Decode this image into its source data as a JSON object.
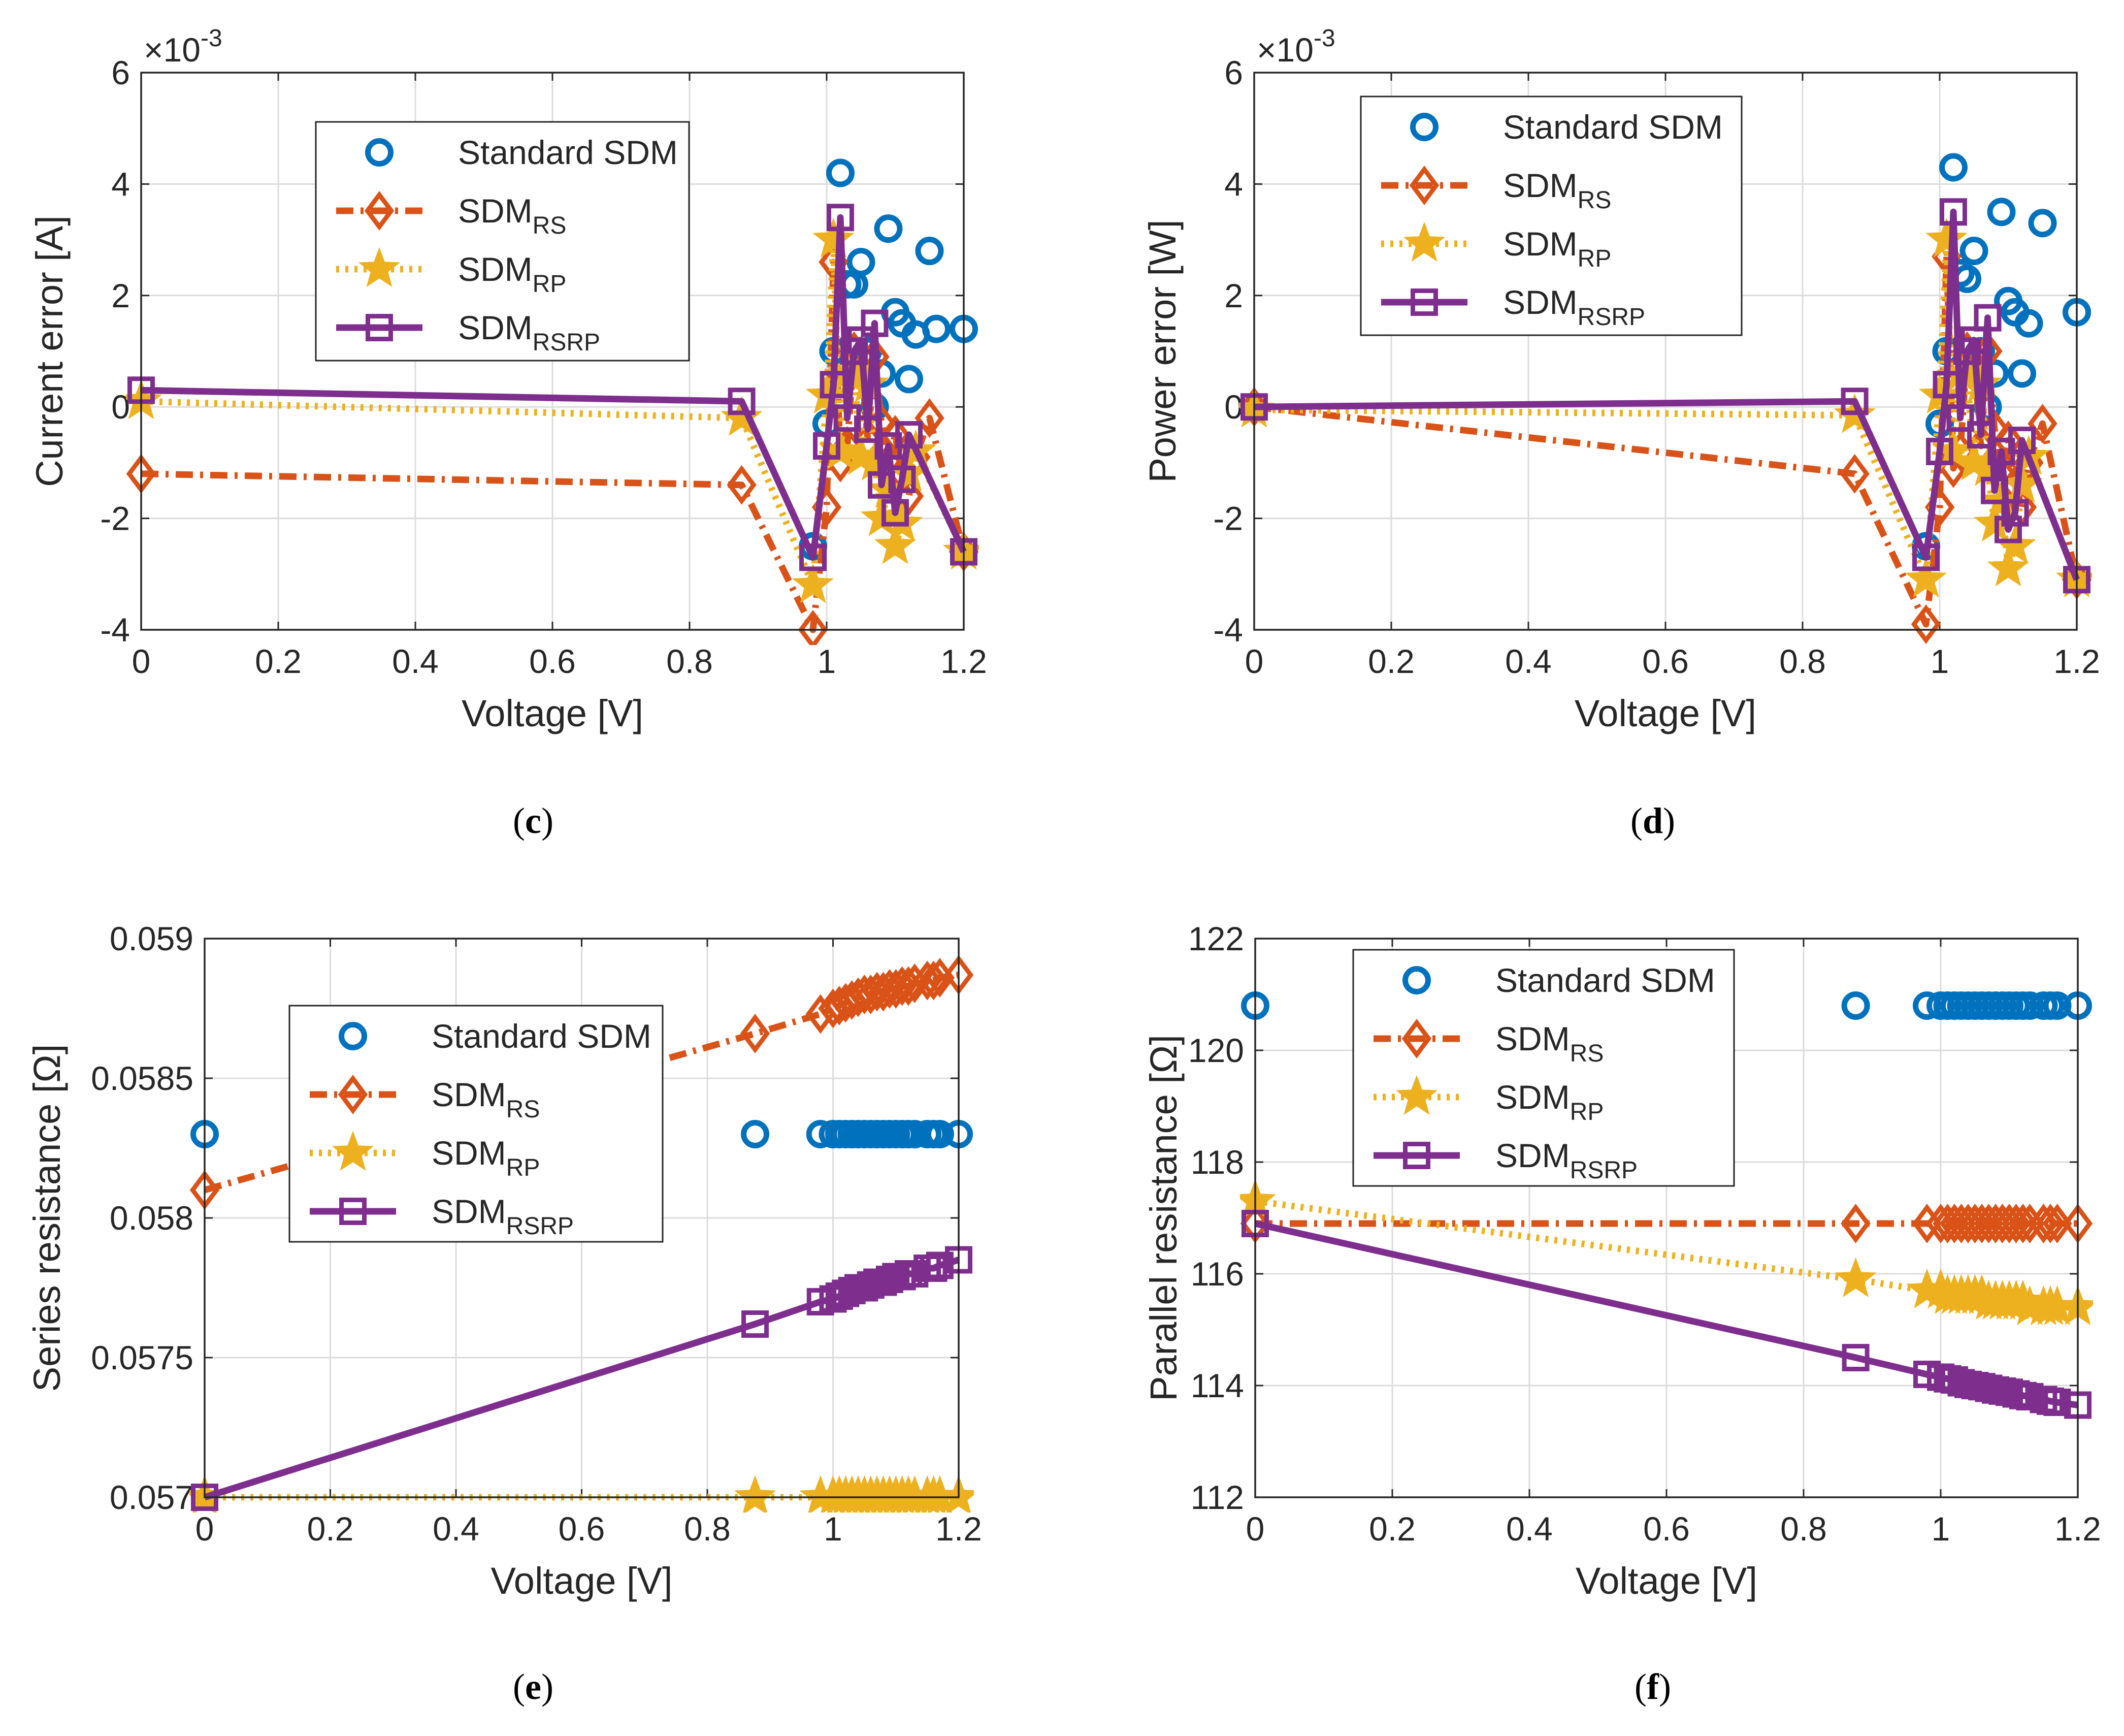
{
  "colors": {
    "standard": "#0072BD",
    "rs": "#D95319",
    "rp": "#EDB120",
    "rsrp": "#7E2F8E",
    "grid": "#dcdcdc",
    "axis": "#262626"
  },
  "legend_labels": {
    "standard": "Standard SDM",
    "sdm_base": "SDM",
    "rs_sub": "RS",
    "rp_sub": "RP",
    "rsrp_sub": "RSRP"
  },
  "chart_data": [
    {
      "id": "c",
      "type": "line",
      "panel_label": "c",
      "xlabel": "Voltage [V]",
      "ylabel": "Current error [A]",
      "exponent": {
        "base": "×10",
        "power": "-3"
      },
      "xlim": [
        0,
        1.2
      ],
      "ylim": [
        -4,
        6
      ],
      "xticks": [
        0,
        0.2,
        0.4,
        0.6,
        0.8,
        1,
        1.2
      ],
      "xtick_labels": [
        "0",
        "0.2",
        "0.4",
        "0.6",
        "0.8",
        "1",
        "1.2"
      ],
      "yticks": [
        -4,
        -2,
        0,
        2,
        4,
        6
      ],
      "ytick_labels": [
        "-4",
        "-2",
        "0",
        "2",
        "4",
        "6"
      ],
      "grid": true,
      "legend_position": "upper-middle",
      "x": [
        0,
        0.876,
        0.98,
        1.0,
        1.01,
        1.02,
        1.03,
        1.04,
        1.05,
        1.06,
        1.07,
        1.08,
        1.09,
        1.1,
        1.11,
        1.12,
        1.13,
        1.15,
        1.16,
        1.17,
        1.2
      ],
      "series": [
        {
          "name": "Standard SDM",
          "key": "standard",
          "style": "markers",
          "marker": "circle",
          "values": [
            null,
            null,
            -2.5,
            -0.3,
            1.0,
            4.2,
            2.2,
            2.2,
            2.6,
            1.0,
            0.0,
            0.6,
            3.2,
            1.7,
            1.5,
            0.5,
            1.3,
            2.8,
            1.4,
            null,
            1.4
          ]
        },
        {
          "name": "SDM_RS",
          "key": "rs",
          "style": "dashdot",
          "marker": "diamond",
          "values": [
            -1.2,
            -1.4,
            -4.0,
            -1.8,
            2.6,
            -1.0,
            -0.7,
            1.0,
            0.9,
            -0.6,
            0.9,
            -0.3,
            -1.0,
            -0.5,
            -1.2,
            -1.6,
            -0.9,
            -0.2,
            null,
            null,
            -2.6
          ]
        },
        {
          "name": "SDM_RP",
          "key": "rp",
          "style": "dotted",
          "marker": "star",
          "values": [
            0.1,
            -0.2,
            -3.2,
            0.2,
            3.0,
            -0.8,
            0.6,
            0.6,
            -0.9,
            0.4,
            -1.0,
            -2.0,
            -1.5,
            -2.5,
            -2.1,
            -1.2,
            -0.8,
            null,
            null,
            null,
            -2.6
          ]
        },
        {
          "name": "SDM_RSRP",
          "key": "rsrp",
          "style": "solid",
          "marker": "square",
          "values": [
            0.3,
            0.1,
            -2.7,
            -0.7,
            0.4,
            3.4,
            -0.2,
            1.0,
            1.2,
            -0.4,
            1.5,
            -1.4,
            -0.7,
            -1.9,
            -1.3,
            -0.5,
            null,
            null,
            null,
            null,
            -2.6
          ]
        }
      ]
    },
    {
      "id": "d",
      "type": "line",
      "panel_label": "d",
      "xlabel": "Voltage [V]",
      "ylabel": "Power error [W]",
      "exponent": {
        "base": "×10",
        "power": "-3"
      },
      "xlim": [
        0,
        1.2
      ],
      "ylim": [
        -4,
        6
      ],
      "xticks": [
        0,
        0.2,
        0.4,
        0.6,
        0.8,
        1,
        1.2
      ],
      "xtick_labels": [
        "0",
        "0.2",
        "0.4",
        "0.6",
        "0.8",
        "1",
        "1.2"
      ],
      "yticks": [
        -4,
        -2,
        0,
        2,
        4,
        6
      ],
      "ytick_labels": [
        "-4",
        "-2",
        "0",
        "2",
        "4",
        "6"
      ],
      "grid": true,
      "legend_position": "top-right",
      "x": [
        0,
        0.876,
        0.98,
        1.0,
        1.01,
        1.02,
        1.03,
        1.04,
        1.05,
        1.06,
        1.07,
        1.08,
        1.09,
        1.1,
        1.11,
        1.12,
        1.13,
        1.15,
        1.16,
        1.17,
        1.2
      ],
      "series": [
        {
          "name": "Standard SDM",
          "key": "standard",
          "style": "markers",
          "marker": "circle",
          "values": [
            null,
            null,
            -2.5,
            -0.3,
            1.0,
            4.3,
            2.4,
            2.3,
            2.8,
            1.0,
            0.0,
            0.6,
            3.5,
            1.9,
            1.7,
            0.6,
            1.5,
            3.3,
            null,
            null,
            1.7
          ]
        },
        {
          "name": "SDM_RS",
          "key": "rs",
          "style": "dashdot",
          "marker": "diamond",
          "values": [
            0,
            -1.2,
            -3.9,
            -1.8,
            2.7,
            -1.1,
            -0.8,
            1.0,
            0.9,
            -0.7,
            1.0,
            -0.4,
            -1.2,
            -0.6,
            -1.4,
            -1.8,
            -1.0,
            -0.3,
            null,
            null,
            -3.1
          ]
        },
        {
          "name": "SDM_RP",
          "key": "rp",
          "style": "dotted",
          "marker": "star",
          "values": [
            -0.05,
            -0.15,
            -3.1,
            0.2,
            3.0,
            -0.8,
            0.6,
            0.6,
            -1.0,
            0.4,
            -1.1,
            -2.1,
            -1.7,
            -2.9,
            -2.5,
            -1.4,
            -0.9,
            null,
            null,
            null,
            -3.1
          ]
        },
        {
          "name": "SDM_RSRP",
          "key": "rsrp",
          "style": "solid",
          "marker": "square",
          "values": [
            0,
            0.1,
            -2.7,
            -0.8,
            0.4,
            3.5,
            -0.2,
            1.0,
            1.2,
            -0.5,
            1.6,
            -1.5,
            -0.8,
            -2.2,
            -1.9,
            -0.6,
            null,
            null,
            null,
            null,
            -3.1
          ]
        }
      ]
    },
    {
      "id": "e",
      "type": "line",
      "panel_label": "e",
      "xlabel": "Voltage [V]",
      "ylabel": "Series resistance [Ω]",
      "xlim": [
        0,
        1.2
      ],
      "ylim": [
        0.057,
        0.059
      ],
      "xticks": [
        0,
        0.2,
        0.4,
        0.6,
        0.8,
        1,
        1.2
      ],
      "xtick_labels": [
        "0",
        "0.2",
        "0.4",
        "0.6",
        "0.8",
        "1",
        "1.2"
      ],
      "yticks": [
        0.057,
        0.0575,
        0.058,
        0.0585,
        0.059
      ],
      "ytick_labels": [
        "0.057",
        "0.0575",
        "0.058",
        "0.0585",
        "0.059"
      ],
      "grid": true,
      "legend_position": "center-left",
      "x": [
        0,
        0.876,
        0.98,
        1.0,
        1.01,
        1.02,
        1.03,
        1.04,
        1.05,
        1.06,
        1.07,
        1.08,
        1.09,
        1.1,
        1.11,
        1.12,
        1.13,
        1.15,
        1.16,
        1.17,
        1.2
      ],
      "series": [
        {
          "name": "Standard SDM",
          "key": "standard",
          "style": "markers",
          "marker": "circle",
          "values": [
            0.0583,
            0.0583,
            0.0583,
            0.0583,
            0.0583,
            0.0583,
            0.0583,
            0.0583,
            0.0583,
            0.0583,
            0.0583,
            0.0583,
            0.0583,
            0.0583,
            0.0583,
            0.0583,
            0.0583,
            0.0583,
            0.0583,
            0.0583,
            0.0583
          ]
        },
        {
          "name": "SDM_RS",
          "key": "rs",
          "style": "dashdot",
          "marker": "diamond",
          "values": [
            0.0581,
            0.05866,
            0.05873,
            0.05875,
            0.05876,
            0.05877,
            0.05878,
            0.05879,
            0.0588,
            0.0588,
            0.05881,
            0.05881,
            0.05882,
            0.05882,
            0.05883,
            0.05883,
            0.05884,
            0.05885,
            0.05885,
            0.05886,
            0.05887
          ]
        },
        {
          "name": "SDM_RP",
          "key": "rp",
          "style": "dotted",
          "marker": "star",
          "values": [
            0.057,
            0.057,
            0.057,
            0.057,
            0.057,
            0.057,
            0.057,
            0.057,
            0.057,
            0.057,
            0.057,
            0.057,
            0.057,
            0.057,
            0.057,
            0.057,
            0.057,
            0.057,
            0.057,
            0.057,
            0.057
          ]
        },
        {
          "name": "SDM_RSRP",
          "key": "rsrp",
          "style": "solid",
          "marker": "square",
          "values": [
            0.057,
            0.05762,
            0.0577,
            0.05771,
            0.05772,
            0.05773,
            0.05774,
            0.05775,
            0.05775,
            0.05776,
            0.05777,
            0.05777,
            0.05778,
            0.05779,
            0.05779,
            0.0578,
            0.0578,
            0.05782,
            0.05782,
            0.05783,
            0.05785
          ]
        }
      ]
    },
    {
      "id": "f",
      "type": "line",
      "panel_label": "f",
      "xlabel": "Voltage [V]",
      "ylabel": "Parallel resistance [Ω]",
      "xlim": [
        0,
        1.2
      ],
      "ylim": [
        112,
        122
      ],
      "xticks": [
        0,
        0.2,
        0.4,
        0.6,
        0.8,
        1,
        1.2
      ],
      "xtick_labels": [
        "0",
        "0.2",
        "0.4",
        "0.6",
        "0.8",
        "1",
        "1.2"
      ],
      "yticks": [
        112,
        114,
        116,
        118,
        120,
        122
      ],
      "ytick_labels": [
        "112",
        "114",
        "116",
        "118",
        "120",
        "122"
      ],
      "grid": true,
      "legend_position": "top-middle",
      "x": [
        0,
        0.876,
        0.98,
        1.0,
        1.01,
        1.02,
        1.03,
        1.04,
        1.05,
        1.06,
        1.07,
        1.08,
        1.09,
        1.1,
        1.11,
        1.12,
        1.13,
        1.15,
        1.16,
        1.17,
        1.2
      ],
      "series": [
        {
          "name": "Standard SDM",
          "key": "standard",
          "style": "markers",
          "marker": "circle",
          "values": [
            120.8,
            120.8,
            120.8,
            120.8,
            120.8,
            120.8,
            120.8,
            120.8,
            120.8,
            120.8,
            120.8,
            120.8,
            120.8,
            120.8,
            120.8,
            120.8,
            120.8,
            120.8,
            120.8,
            120.8,
            120.8
          ]
        },
        {
          "name": "SDM_RS",
          "key": "rs",
          "style": "dashdot",
          "marker": "diamond",
          "values": [
            116.9,
            116.9,
            116.9,
            116.9,
            116.9,
            116.9,
            116.9,
            116.9,
            116.9,
            116.9,
            116.9,
            116.9,
            116.9,
            116.9,
            116.9,
            116.9,
            116.9,
            116.9,
            116.9,
            116.9,
            116.9
          ]
        },
        {
          "name": "SDM_RP",
          "key": "rp",
          "style": "dotted",
          "marker": "star",
          "values": [
            117.3,
            115.9,
            115.7,
            115.7,
            115.6,
            115.6,
            115.6,
            115.6,
            115.6,
            115.6,
            115.5,
            115.5,
            115.5,
            115.5,
            115.5,
            115.5,
            115.4,
            115.4,
            115.4,
            115.4,
            115.4
          ]
        },
        {
          "name": "SDM_RSRP",
          "key": "rsrp",
          "style": "solid",
          "marker": "square",
          "values": [
            116.9,
            114.5,
            114.2,
            114.15,
            114.12,
            114.1,
            114.05,
            114.02,
            114.0,
            113.98,
            113.95,
            113.92,
            113.9,
            113.88,
            113.85,
            113.82,
            113.8,
            113.75,
            113.72,
            113.7,
            113.65
          ]
        }
      ]
    }
  ]
}
